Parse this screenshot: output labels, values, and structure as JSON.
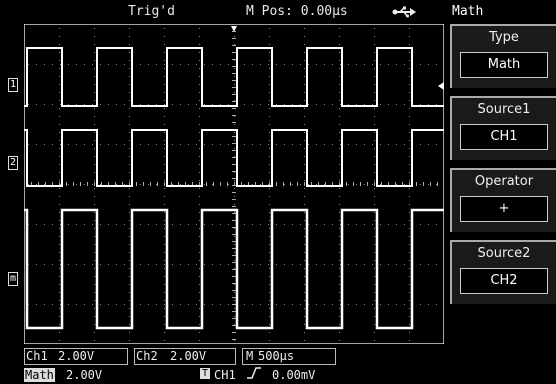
{
  "header": {
    "trigger_status": "Trig'd",
    "mpos": "M Pos: 0.00µs",
    "usb_icon": "usb-icon"
  },
  "markers": {
    "ch1": "1",
    "ch2": "2",
    "math": "m"
  },
  "status": {
    "ch1_label": "Ch1",
    "ch1_value": "2.00V",
    "ch2_label": "Ch2",
    "ch2_value": "2.00V",
    "timebase_label": "M",
    "timebase_value": "500µs",
    "math_label": "Math",
    "math_value": "2.00V",
    "trig_icon": "T",
    "trig_source": "CH1",
    "trig_level": "0.00mV"
  },
  "menu": {
    "title": "Math",
    "items": [
      {
        "label": "Type",
        "value": "Math"
      },
      {
        "label": "Source1",
        "value": "CH1"
      },
      {
        "label": "Operator",
        "value": "+"
      },
      {
        "label": "Source2",
        "value": "CH2"
      }
    ]
  }
}
